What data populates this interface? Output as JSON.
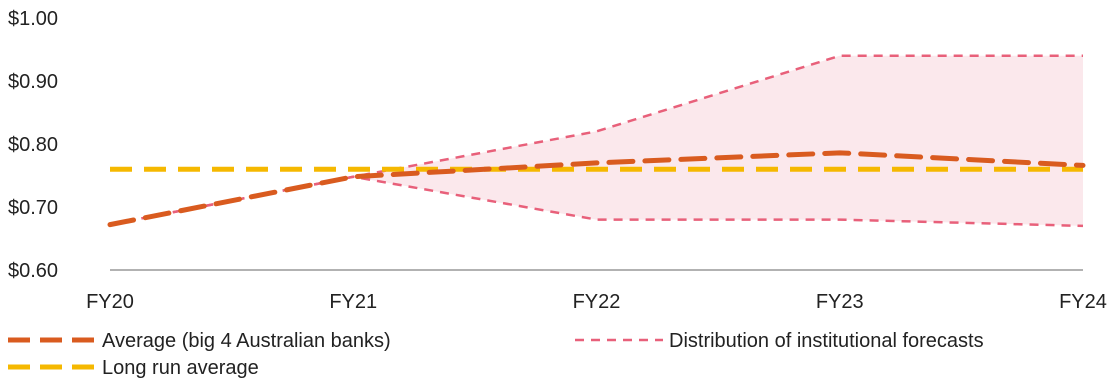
{
  "chart_data": {
    "type": "line",
    "title": "",
    "xlabel": "",
    "ylabel": "",
    "categories": [
      "FY20",
      "FY21",
      "FY22",
      "FY23",
      "FY24"
    ],
    "yticks": [
      "$1.00",
      "$0.90",
      "$0.80",
      "$0.70",
      "$0.60"
    ],
    "ylim": [
      0.6,
      1.0
    ],
    "series": [
      {
        "name": "Average (big 4 Australian banks)",
        "values": [
          0.672,
          0.748,
          0.77,
          0.786,
          0.766
        ],
        "color": "#d95b1f",
        "style": "dashed-thick"
      },
      {
        "name": "Long run average",
        "values": [
          0.76,
          0.76,
          0.76,
          0.76,
          0.76
        ],
        "color": "#f5b800",
        "style": "dashed-thick"
      },
      {
        "name": "Distribution of institutional forecasts",
        "upper": [
          0.672,
          0.748,
          0.82,
          0.94,
          0.94
        ],
        "lower": [
          0.672,
          0.748,
          0.68,
          0.68,
          0.67
        ],
        "color": "#e8607a",
        "fill": "#fbe8ec",
        "style": "dashed-thin"
      }
    ],
    "grid": false,
    "legend_position": "bottom"
  }
}
